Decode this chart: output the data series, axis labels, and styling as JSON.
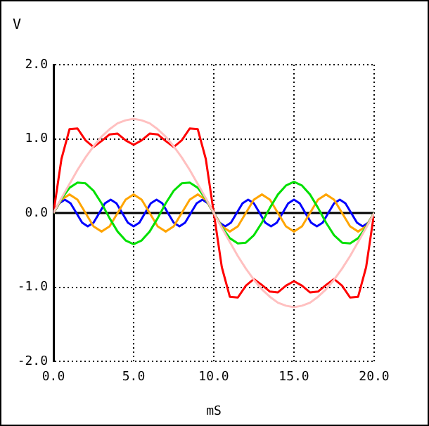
{
  "chart_data": {
    "type": "line",
    "xlabel": "mS",
    "ylabel": "V",
    "xlim": [
      0,
      20
    ],
    "ylim": [
      -2,
      2
    ],
    "xticks": [
      {
        "value": 0,
        "label": "0.0"
      },
      {
        "value": 5,
        "label": "5.0"
      },
      {
        "value": 10,
        "label": "10.0"
      },
      {
        "value": 15,
        "label": "15.0"
      },
      {
        "value": 20,
        "label": "20.0"
      }
    ],
    "yticks": [
      {
        "value": -2,
        "label": "-2.0"
      },
      {
        "value": -1,
        "label": "-1.0"
      },
      {
        "value": 0,
        "label": "0.0"
      },
      {
        "value": 1,
        "label": "1.0"
      },
      {
        "value": 2,
        "label": "2.0"
      }
    ],
    "grid": true,
    "legend": false,
    "marker": "none",
    "line_style": "solid",
    "ref_lines": [
      {
        "axis": "y",
        "value": 0,
        "color": "#000000"
      }
    ],
    "x": [
      0,
      0.5,
      1,
      1.5,
      2,
      2.5,
      3,
      3.5,
      4,
      4.5,
      5,
      5.5,
      6,
      6.5,
      7,
      7.5,
      8,
      8.5,
      9,
      9.5,
      10,
      10.5,
      11,
      11.5,
      12,
      12.5,
      13,
      13.5,
      14,
      14.5,
      15,
      15.5,
      16,
      16.5,
      17,
      17.5,
      18,
      18.5,
      19,
      19.5,
      20
    ],
    "series": [
      {
        "color": "#ffc0c0",
        "values": [
          0,
          0.2,
          0.39,
          0.58,
          0.75,
          0.9,
          1.03,
          1.13,
          1.21,
          1.25,
          1.27,
          1.25,
          1.21,
          1.13,
          1.03,
          0.9,
          0.75,
          0.58,
          0.39,
          0.2,
          0,
          -0.2,
          -0.39,
          -0.58,
          -0.75,
          -0.9,
          -1.03,
          -1.13,
          -1.21,
          -1.25,
          -1.27,
          -1.25,
          -1.21,
          -1.13,
          -1.03,
          -0.9,
          -0.75,
          -0.58,
          -0.39,
          -0.2,
          0
        ]
      },
      {
        "color": "#00e000",
        "values": [
          0,
          0.19,
          0.34,
          0.41,
          0.4,
          0.3,
          0.13,
          -0.07,
          -0.25,
          -0.37,
          -0.42,
          -0.37,
          -0.25,
          -0.07,
          0.13,
          0.3,
          0.4,
          0.41,
          0.34,
          0.19,
          0,
          -0.19,
          -0.34,
          -0.41,
          -0.4,
          -0.3,
          -0.13,
          0.07,
          0.25,
          0.37,
          0.42,
          0.37,
          0.25,
          0.07,
          -0.13,
          -0.3,
          -0.4,
          -0.41,
          -0.34,
          -0.19,
          0
        ]
      },
      {
        "color": "#ffa500",
        "values": [
          0,
          0.18,
          0.25,
          0.18,
          0,
          -0.18,
          -0.25,
          -0.18,
          0,
          0.18,
          0.25,
          0.18,
          0,
          -0.18,
          -0.25,
          -0.18,
          0,
          0.18,
          0.25,
          0.18,
          0,
          -0.18,
          -0.25,
          -0.18,
          0,
          0.18,
          0.25,
          0.18,
          0,
          -0.18,
          -0.25,
          -0.18,
          0,
          0.18,
          0.25,
          0.18,
          0,
          -0.18,
          -0.25,
          -0.18,
          0
        ]
      },
      {
        "color": "#0000ff",
        "x": [
          0,
          0.36,
          0.71,
          1.07,
          1.43,
          1.79,
          2.14,
          2.5,
          2.86,
          3.21,
          3.57,
          3.93,
          4.29,
          4.64,
          5,
          5.36,
          5.71,
          6.07,
          6.43,
          6.79,
          7.14,
          7.5,
          7.86,
          8.21,
          8.57,
          8.93,
          9.29,
          9.64,
          10,
          10.36,
          10.71,
          11.07,
          11.43,
          11.79,
          12.14,
          12.5,
          12.86,
          13.21,
          13.57,
          13.93,
          14.29,
          14.64,
          15,
          15.36,
          15.71,
          16.07,
          16.43,
          16.79,
          17.14,
          17.5,
          17.86,
          18.21,
          18.57,
          18.93,
          19.29,
          19.64,
          20
        ],
        "values": [
          0,
          0.13,
          0.18,
          0.13,
          0,
          -0.13,
          -0.18,
          -0.13,
          0,
          0.13,
          0.18,
          0.13,
          0,
          -0.13,
          -0.18,
          -0.13,
          0,
          0.13,
          0.18,
          0.13,
          0,
          -0.13,
          -0.18,
          -0.13,
          0,
          0.13,
          0.18,
          0.13,
          0,
          -0.13,
          -0.18,
          -0.13,
          0,
          0.13,
          0.18,
          0.13,
          0,
          -0.13,
          -0.18,
          -0.13,
          0,
          0.13,
          0.18,
          0.13,
          0,
          -0.13,
          -0.18,
          -0.13,
          0,
          0.13,
          0.18,
          0.13,
          0,
          -0.13,
          -0.18,
          -0.13,
          0
        ]
      },
      {
        "color": "#ff0000",
        "values": [
          0,
          0.73,
          1.13,
          1.14,
          0.98,
          0.89,
          0.97,
          1.06,
          1.07,
          0.98,
          0.92,
          0.98,
          1.07,
          1.06,
          0.97,
          0.89,
          0.98,
          1.14,
          1.13,
          0.73,
          0,
          -0.73,
          -1.13,
          -1.14,
          -0.98,
          -0.89,
          -0.97,
          -1.06,
          -1.07,
          -0.98,
          -0.92,
          -0.98,
          -1.07,
          -1.06,
          -0.97,
          -0.89,
          -0.98,
          -1.14,
          -1.13,
          -0.73,
          0
        ]
      }
    ]
  }
}
